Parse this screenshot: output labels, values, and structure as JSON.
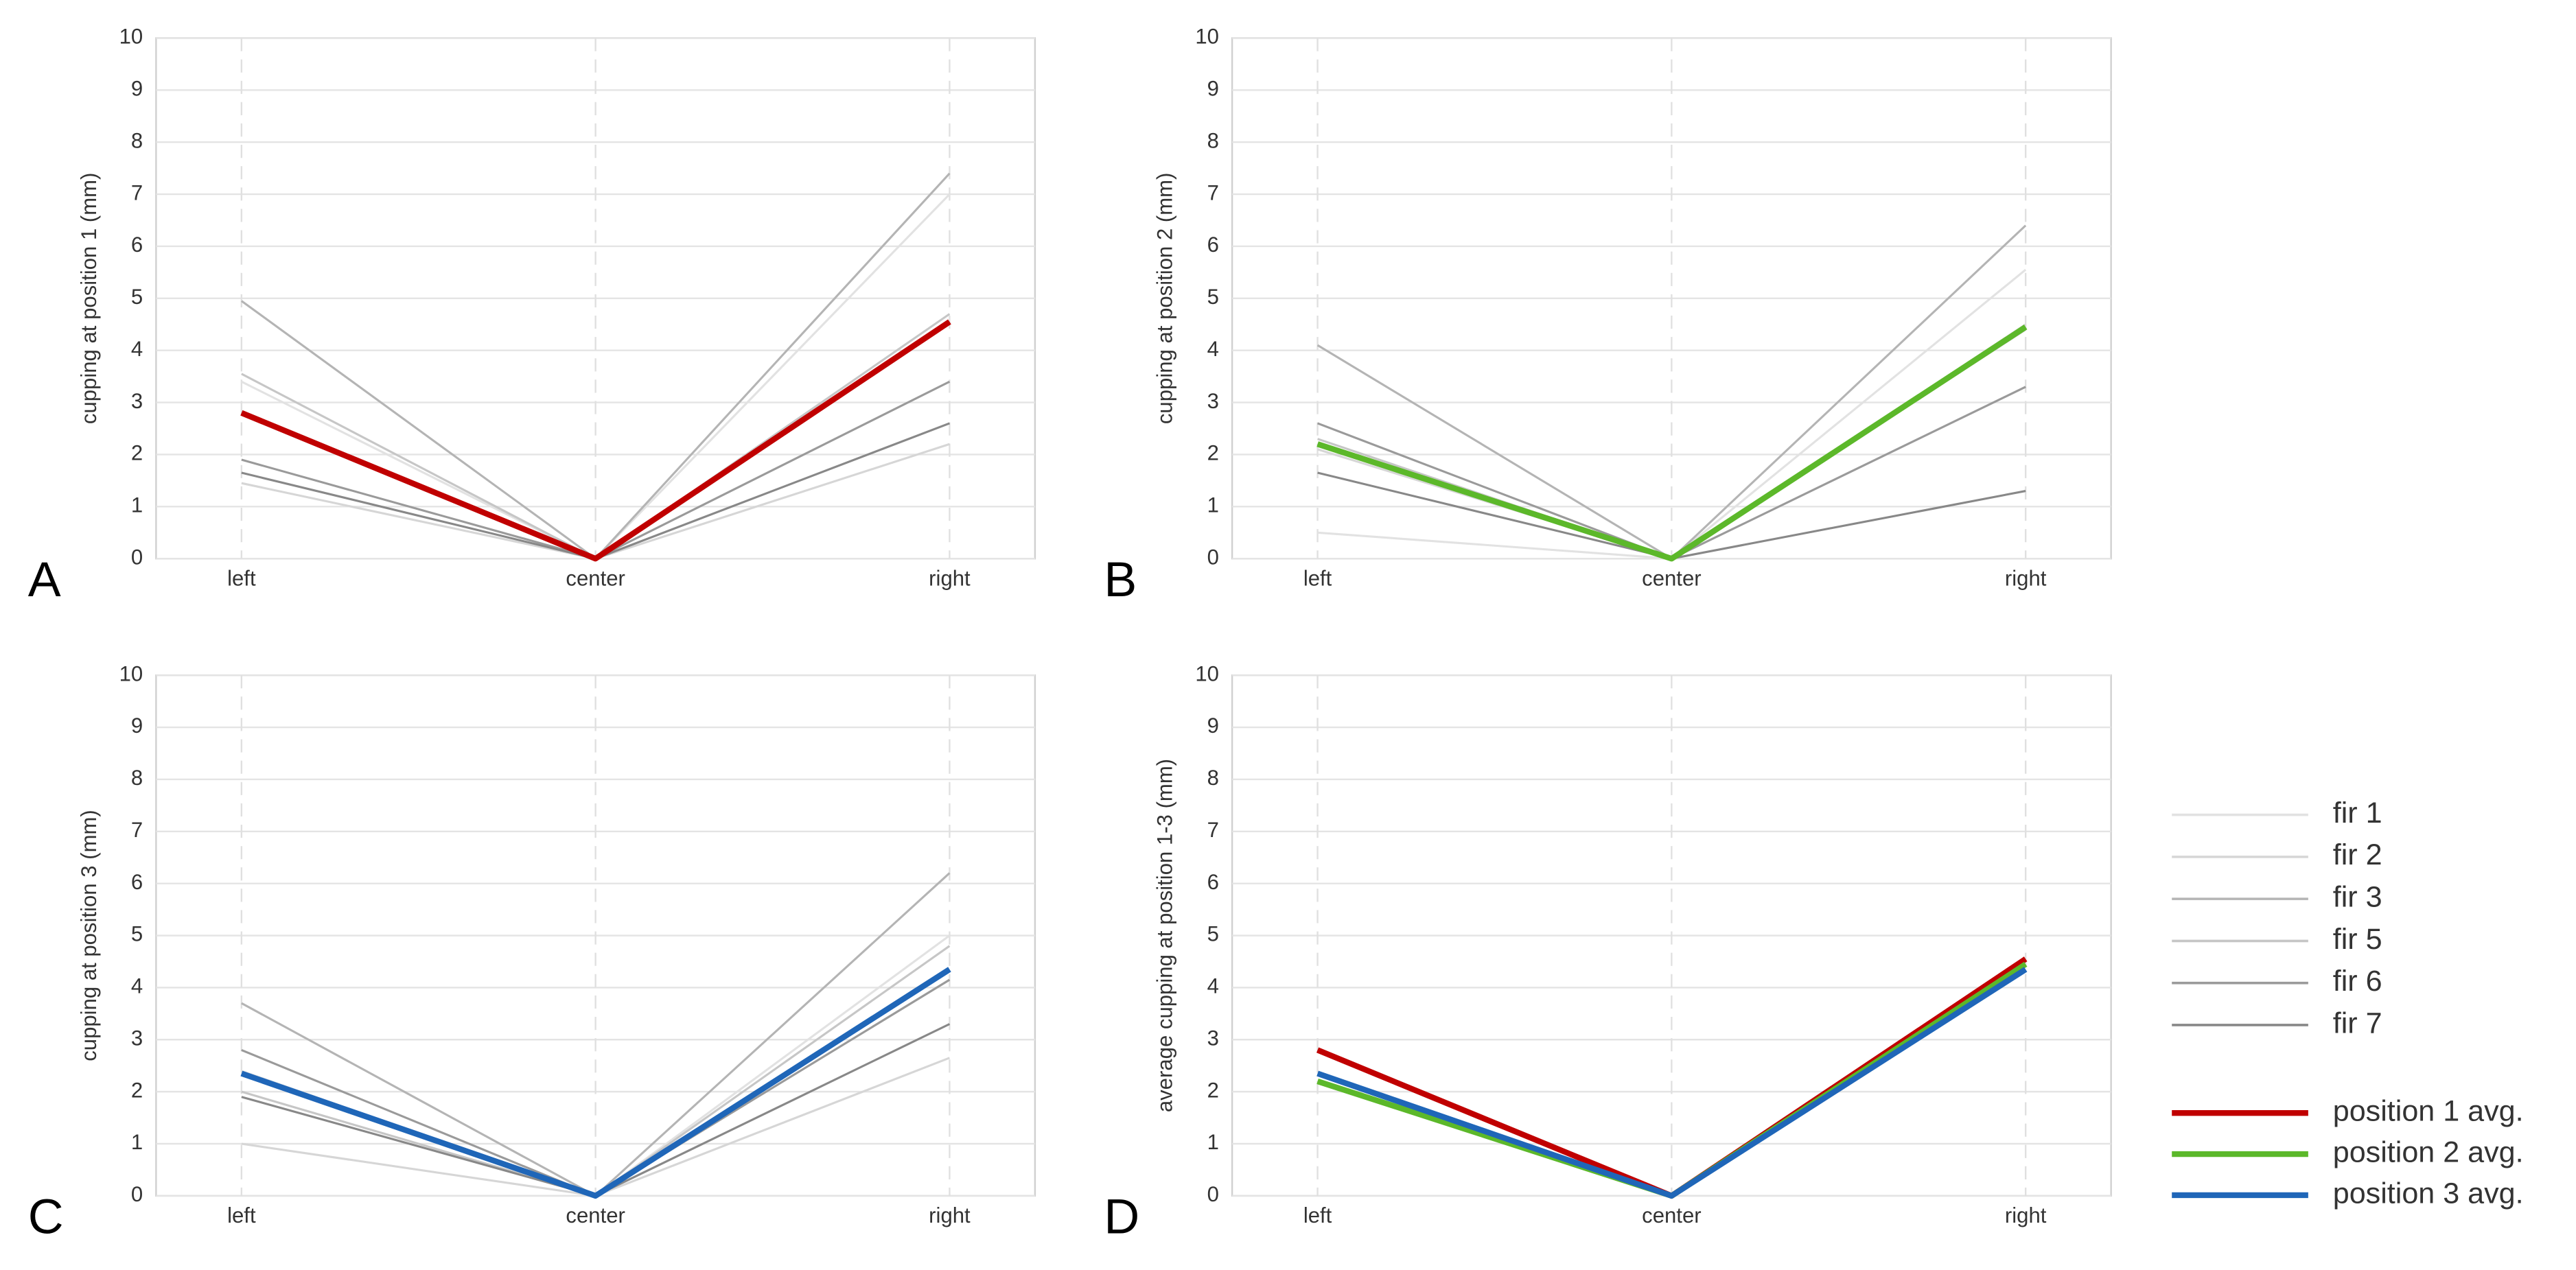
{
  "chart_data": [
    {
      "type": "line",
      "panel": "A",
      "ylabel": "cupping at position 1 (mm)",
      "categories": [
        "left",
        "center",
        "right"
      ],
      "ylim": [
        0,
        10
      ],
      "yticks": [
        0,
        1,
        2,
        3,
        4,
        5,
        6,
        7,
        8,
        9,
        10
      ],
      "grid": true,
      "series": [
        {
          "name": "fir 1",
          "color": "#e2e2e2",
          "values": [
            3.4,
            0,
            7.0
          ]
        },
        {
          "name": "fir 2",
          "color": "#d6d6d6",
          "values": [
            1.45,
            0,
            2.2
          ]
        },
        {
          "name": "fir 3",
          "color": "#b4b4b4",
          "values": [
            4.95,
            0,
            7.4
          ]
        },
        {
          "name": "fir 5",
          "color": "#c6c6c6",
          "values": [
            3.55,
            0,
            4.7
          ]
        },
        {
          "name": "fir 6",
          "color": "#9a9a9a",
          "values": [
            1.9,
            0,
            3.4
          ]
        },
        {
          "name": "fir 7",
          "color": "#888888",
          "values": [
            1.65,
            0,
            2.6
          ]
        },
        {
          "name": "position 1 avg.",
          "color": "#c00000",
          "values": [
            2.8,
            0,
            4.55
          ]
        }
      ]
    },
    {
      "type": "line",
      "panel": "B",
      "ylabel": "cupping at position 2 (mm)",
      "categories": [
        "left",
        "center",
        "right"
      ],
      "ylim": [
        0,
        10
      ],
      "yticks": [
        0,
        1,
        2,
        3,
        4,
        5,
        6,
        7,
        8,
        9,
        10
      ],
      "grid": true,
      "series": [
        {
          "name": "fir 1",
          "color": "#e2e2e2",
          "values": [
            0.5,
            0,
            5.55
          ]
        },
        {
          "name": "fir 2",
          "color": "#d6d6d6",
          "values": [
            2.1,
            0,
            4.5
          ]
        },
        {
          "name": "fir 3",
          "color": "#b4b4b4",
          "values": [
            4.1,
            0,
            6.4
          ]
        },
        {
          "name": "fir 5",
          "color": "#c6c6c6",
          "values": [
            2.3,
            0,
            4.4
          ]
        },
        {
          "name": "fir 6",
          "color": "#9a9a9a",
          "values": [
            2.6,
            0,
            3.3
          ]
        },
        {
          "name": "fir 7",
          "color": "#888888",
          "values": [
            1.65,
            0,
            1.3
          ]
        },
        {
          "name": "position 2 avg.",
          "color": "#5cb82a",
          "values": [
            2.2,
            0,
            4.45
          ]
        }
      ]
    },
    {
      "type": "line",
      "panel": "C",
      "ylabel": "cupping at position 3 (mm)",
      "categories": [
        "left",
        "center",
        "right"
      ],
      "ylim": [
        0,
        10
      ],
      "yticks": [
        0,
        1,
        2,
        3,
        4,
        5,
        6,
        7,
        8,
        9,
        10
      ],
      "grid": true,
      "series": [
        {
          "name": "fir 1",
          "color": "#e2e2e2",
          "values": [
            2.4,
            0,
            5.0
          ]
        },
        {
          "name": "fir 2",
          "color": "#d6d6d6",
          "values": [
            1.0,
            0,
            2.65
          ]
        },
        {
          "name": "fir 3",
          "color": "#b4b4b4",
          "values": [
            3.7,
            0,
            6.2
          ]
        },
        {
          "name": "fir 5",
          "color": "#c6c6c6",
          "values": [
            2.0,
            0,
            4.8
          ]
        },
        {
          "name": "fir 6",
          "color": "#9a9a9a",
          "values": [
            2.8,
            0,
            4.15
          ]
        },
        {
          "name": "fir 7",
          "color": "#888888",
          "values": [
            1.9,
            0,
            3.3
          ]
        },
        {
          "name": "position 3 avg.",
          "color": "#1f66b8",
          "values": [
            2.35,
            0,
            4.35
          ]
        }
      ]
    },
    {
      "type": "line",
      "panel": "D",
      "ylabel": "average cupping at position 1-3 (mm)",
      "categories": [
        "left",
        "center",
        "right"
      ],
      "ylim": [
        0,
        10
      ],
      "yticks": [
        0,
        1,
        2,
        3,
        4,
        5,
        6,
        7,
        8,
        9,
        10
      ],
      "grid": true,
      "series": [
        {
          "name": "position 1 avg.",
          "color": "#c00000",
          "values": [
            2.8,
            0,
            4.55
          ]
        },
        {
          "name": "position 2 avg.",
          "color": "#5cb82a",
          "values": [
            2.2,
            0,
            4.45
          ]
        },
        {
          "name": "position 3 avg.",
          "color": "#1f66b8",
          "values": [
            2.35,
            0,
            4.35
          ]
        }
      ]
    }
  ]
}
